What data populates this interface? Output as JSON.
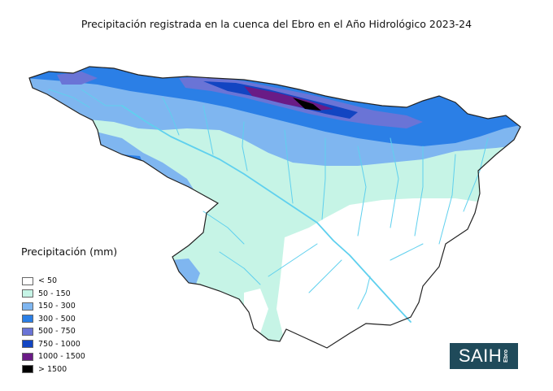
{
  "title": "Precipitación registrada en la cuenca del Ebro en el Año Hidrológico 2023-24",
  "legend": {
    "title": "Precipitación (mm)",
    "items": [
      {
        "label": "< 50",
        "color": "#ffffff"
      },
      {
        "label": "50 - 150",
        "color": "#c6f4e6"
      },
      {
        "label": "150 - 300",
        "color": "#7fb6f0"
      },
      {
        "label": "300 - 500",
        "color": "#2b7fe6"
      },
      {
        "label": "500 - 750",
        "color": "#6a74d6"
      },
      {
        "label": "750 - 1000",
        "color": "#1245c2"
      },
      {
        "label": "1000 - 1500",
        "color": "#6a1b86"
      },
      {
        "label": "> 1500",
        "color": "#000000"
      }
    ]
  },
  "logo": {
    "main": "SAIH",
    "sub": "Ebro"
  },
  "colors": {
    "river": "#5fd0ee",
    "border": "#222222"
  }
}
